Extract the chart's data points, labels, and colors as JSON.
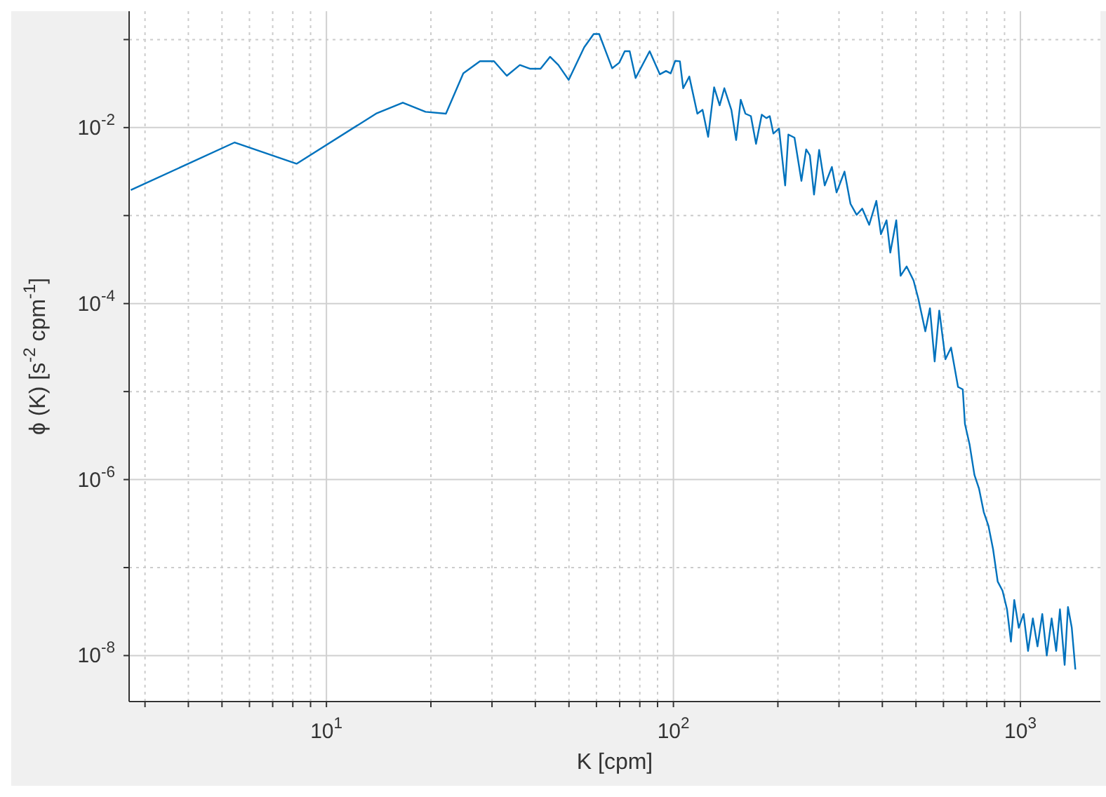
{
  "chart_data": {
    "type": "line",
    "xlabel": "K [cpm]",
    "ylabel": "ϕ (K)  [s$^{-2}$ cpm$^{-1}$]",
    "log": "xy",
    "grid": true,
    "marker": "none",
    "line_style": "solid",
    "xlim": [
      2.7,
      1700
    ],
    "ylim": [
      3e-09,
      0.21
    ],
    "xticks": [
      {
        "value": 3,
        "label": null
      },
      {
        "value": 4,
        "label": null
      },
      {
        "value": 5,
        "label": null
      },
      {
        "value": 6,
        "label": null
      },
      {
        "value": 7,
        "label": null
      },
      {
        "value": 8,
        "label": null
      },
      {
        "value": 9,
        "label": null
      },
      {
        "value": 10,
        "label": "10$^{1}$"
      },
      {
        "value": 20,
        "label": null
      },
      {
        "value": 30,
        "label": null
      },
      {
        "value": 40,
        "label": null
      },
      {
        "value": 50,
        "label": null
      },
      {
        "value": 60,
        "label": null
      },
      {
        "value": 70,
        "label": null
      },
      {
        "value": 80,
        "label": null
      },
      {
        "value": 90,
        "label": null
      },
      {
        "value": 100,
        "label": "10$^{2}$"
      },
      {
        "value": 200,
        "label": null
      },
      {
        "value": 300,
        "label": null
      },
      {
        "value": 400,
        "label": null
      },
      {
        "value": 500,
        "label": null
      },
      {
        "value": 600,
        "label": null
      },
      {
        "value": 700,
        "label": null
      },
      {
        "value": 800,
        "label": null
      },
      {
        "value": 900,
        "label": null
      },
      {
        "value": 1000,
        "label": "10$^{3}$"
      }
    ],
    "yticks": [
      {
        "value": 1e-08,
        "label": "10$^{-8}$"
      },
      {
        "value": 1e-07,
        "label": null
      },
      {
        "value": 1e-06,
        "label": "10$^{-6}$"
      },
      {
        "value": 1e-05,
        "label": null
      },
      {
        "value": 0.0001,
        "label": "10$^{-4}$"
      },
      {
        "value": 0.001,
        "label": null
      },
      {
        "value": 0.01,
        "label": "10$^{-2}$"
      },
      {
        "value": 0.1,
        "label": null
      }
    ],
    "x": [
      2.73,
      5.44,
      8.2,
      13.9,
      16.6,
      19.3,
      22.1,
      24.8,
      27.7,
      30.4,
      33.1,
      36.1,
      38.7,
      41.4,
      44.1,
      46.6,
      49.9,
      55.3,
      58.9,
      61.1,
      66.6,
      69.8,
      72.4,
      74.8,
      77.8,
      85.4,
      91.4,
      95.2,
      98.2,
      101.2,
      104.4,
      106.7,
      111.1,
      117.2,
      121.3,
      125.9,
      131,
      135.9,
      140.2,
      146.9,
      151.6,
      156.3,
      161.2,
      167.2,
      173,
      179.7,
      185.3,
      189.5,
      194.1,
      201.5,
      209.9,
      214.4,
      223.3,
      233.8,
      241.3,
      247.3,
      254.2,
      263,
      272.9,
      286.2,
      295.2,
      311.2,
      323.8,
      337.2,
      350,
      366.6,
      384.4,
      396.3,
      411.3,
      421.7,
      438.7,
      451.5,
      469.9,
      492,
      508,
      532,
      548.6,
      566,
      583.6,
      608,
      631,
      661,
      682,
      692,
      714,
      737,
      760,
      784,
      809,
      834,
      860,
      888,
      915,
      939,
      960,
      989,
      1021,
      1052,
      1086,
      1120,
      1156,
      1191,
      1230,
      1268,
      1300,
      1341,
      1371,
      1406,
      1440
    ],
    "series": [
      {
        "color": "#0072bd",
        "values": [
          0.00195,
          0.00678,
          0.00388,
          0.0144,
          0.0192,
          0.0151,
          0.0144,
          0.0413,
          0.0567,
          0.0567,
          0.0388,
          0.0514,
          0.0466,
          0.0466,
          0.0638,
          0.0514,
          0.0348,
          0.0815,
          0.1156,
          0.1156,
          0.0472,
          0.0546,
          0.0738,
          0.0738,
          0.0366,
          0.0738,
          0.0403,
          0.044,
          0.0413,
          0.0573,
          0.0567,
          0.028,
          0.038,
          0.0144,
          0.0159,
          0.00784,
          0.0287,
          0.0179,
          0.028,
          0.0159,
          0.00721,
          0.0207,
          0.0144,
          0.0135,
          0.00653,
          0.014,
          0.0128,
          0.0135,
          0.00855,
          0.00975,
          0.0022,
          0.00834,
          0.00767,
          0.00248,
          0.00565,
          0.00483,
          0.00173,
          0.00558,
          0.0022,
          0.00357,
          0.00183,
          0.00316,
          0.00136,
          0.00102,
          0.0012,
          0.000785,
          0.00147,
          0.000615,
          0.000885,
          0.000379,
          0.000885,
          0.000207,
          0.000264,
          0.000183,
          0.000113,
          4.83e-05,
          8.85e-05,
          2.2e-05,
          8.32e-05,
          2.33e-05,
          3.16e-05,
          1.13e-05,
          1.06e-05,
          4.29e-06,
          2.48e-06,
          1.13e-06,
          7.85e-07,
          4.28e-07,
          2.97e-07,
          1.62e-07,
          6.94e-08,
          5.45e-08,
          3.35e-08,
          1.44e-08,
          4.28e-08,
          2.07e-08,
          2.97e-08,
          1.13e-08,
          2.64e-08,
          1.27e-08,
          2.97e-08,
          1e-08,
          2.64e-08,
          1.13e-08,
          3.35e-08,
          7.83e-09,
          3.56e-08,
          2.07e-08,
          6.95e-09
        ]
      }
    ]
  }
}
